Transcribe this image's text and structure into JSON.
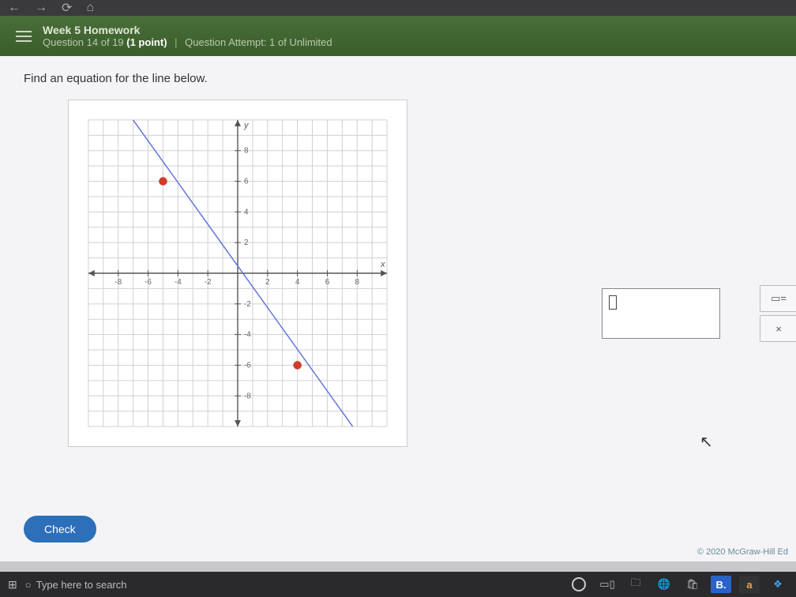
{
  "header": {
    "title": "Week 5 Homework",
    "question_label": "Question 14 of 19",
    "points": "(1 point)",
    "attempt_label": "Question Attempt:",
    "attempt_value": "1 of Unlimited"
  },
  "question": {
    "prompt": "Find an equation for the line below."
  },
  "chart": {
    "type": "line",
    "xlim": [
      -10,
      10
    ],
    "ylim": [
      -10,
      10
    ],
    "xtick_step": 2,
    "ytick_step": 2,
    "tick_labels_x": [
      "-8",
      "-6",
      "-4",
      "-2",
      "",
      "2",
      "4",
      "6",
      "8"
    ],
    "tick_labels_y": [
      "-8",
      "-6",
      "-4",
      "-2",
      "",
      "2",
      "4",
      "6",
      "8"
    ],
    "axis_labels": {
      "x": "x",
      "y": "y"
    },
    "grid_color": "#d0d0d4",
    "axis_color": "#555",
    "background_color": "#ffffff",
    "tick_font_size": 10,
    "line": {
      "color": "#5a6fd8",
      "width": 1.4,
      "points": [
        [
          -7,
          10
        ],
        [
          7.7,
          -10
        ]
      ]
    },
    "markers": [
      {
        "x": -5,
        "y": 6,
        "color": "#d83a2a",
        "radius": 5
      },
      {
        "x": 4,
        "y": -6,
        "color": "#d83a2a",
        "radius": 5
      }
    ]
  },
  "answer_box": {
    "value": ""
  },
  "tools": {
    "eq_button": "▭=",
    "clear_button": "×"
  },
  "check_button": "Check",
  "copyright": "© 2020 McGraw-Hill Ed",
  "taskbar": {
    "search_placeholder": "Type here to search",
    "icons": {
      "b": "B.",
      "a": "a",
      "dropbox": "❖"
    }
  }
}
